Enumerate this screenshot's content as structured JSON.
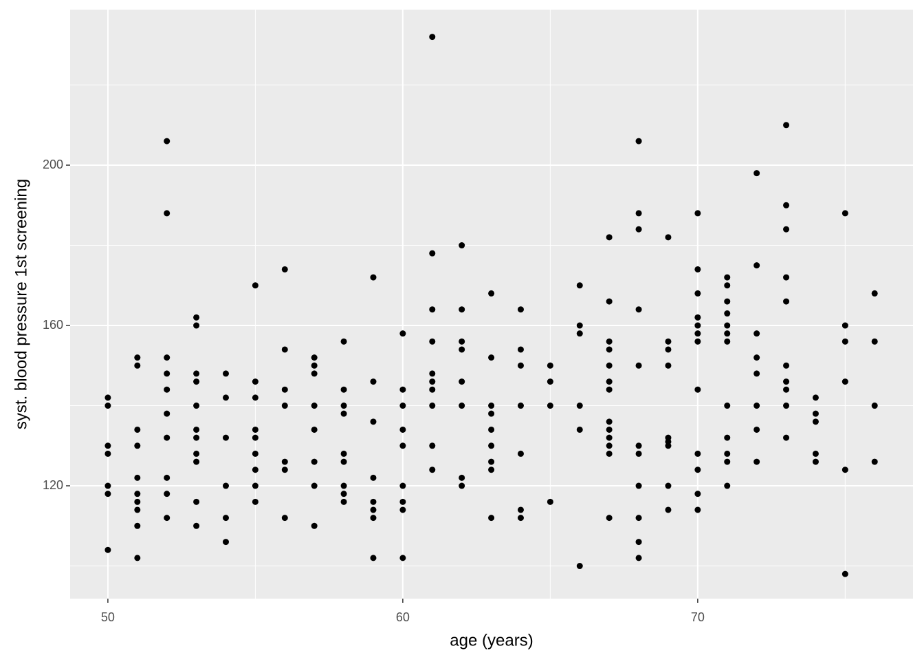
{
  "chart_data": {
    "type": "scatter",
    "x_label": "age (years)",
    "y_label": "syst. blood pressure 1st screening",
    "color": "#000000",
    "grid": true,
    "xlim": [
      48.72,
      77.3
    ],
    "ylim": [
      91.85,
      238.8
    ],
    "xticks": [
      50,
      60,
      70
    ],
    "yticks": [
      120,
      160,
      200
    ],
    "x": [
      50,
      50,
      50,
      50,
      50,
      50,
      50,
      51,
      51,
      51,
      51,
      51,
      51,
      51,
      51,
      51,
      51,
      52,
      52,
      52,
      52,
      52,
      52,
      52,
      52,
      52,
      52,
      53,
      53,
      53,
      53,
      53,
      53,
      53,
      53,
      53,
      53,
      53,
      54,
      54,
      54,
      54,
      54,
      54,
      55,
      55,
      55,
      55,
      55,
      55,
      55,
      55,
      55,
      56,
      56,
      56,
      56,
      56,
      56,
      56,
      57,
      57,
      57,
      57,
      57,
      57,
      57,
      57,
      58,
      58,
      58,
      58,
      58,
      58,
      58,
      58,
      58,
      59,
      59,
      59,
      59,
      59,
      59,
      59,
      59,
      60,
      60,
      60,
      60,
      60,
      60,
      60,
      60,
      60,
      61,
      61,
      61,
      61,
      61,
      61,
      61,
      61,
      61,
      61,
      62,
      62,
      62,
      62,
      62,
      62,
      62,
      62,
      63,
      63,
      63,
      63,
      63,
      63,
      63,
      63,
      63,
      64,
      64,
      64,
      64,
      64,
      64,
      64,
      65,
      65,
      65,
      65,
      66,
      66,
      66,
      66,
      66,
      66,
      67,
      67,
      67,
      67,
      67,
      67,
      67,
      67,
      67,
      67,
      67,
      67,
      67,
      68,
      68,
      68,
      68,
      68,
      68,
      68,
      68,
      68,
      68,
      68,
      69,
      69,
      69,
      69,
      69,
      69,
      69,
      69,
      69,
      70,
      70,
      70,
      70,
      70,
      70,
      70,
      70,
      70,
      70,
      70,
      70,
      71,
      71,
      71,
      71,
      71,
      71,
      71,
      71,
      71,
      71,
      71,
      71,
      72,
      72,
      72,
      72,
      72,
      72,
      72,
      72,
      73,
      73,
      73,
      73,
      73,
      73,
      73,
      73,
      73,
      73,
      74,
      74,
      74,
      74,
      74,
      75,
      75,
      75,
      75,
      75,
      75,
      76,
      76,
      76,
      76
    ],
    "y": [
      142,
      140,
      130,
      128,
      120,
      118,
      104,
      152,
      150,
      134,
      130,
      122,
      118,
      116,
      114,
      110,
      102,
      206,
      188,
      152,
      148,
      144,
      138,
      132,
      122,
      118,
      112,
      162,
      160,
      148,
      146,
      140,
      134,
      132,
      128,
      126,
      116,
      110,
      148,
      142,
      132,
      120,
      112,
      106,
      170,
      146,
      142,
      134,
      132,
      128,
      124,
      120,
      116,
      174,
      154,
      144,
      140,
      126,
      124,
      112,
      152,
      150,
      148,
      140,
      134,
      126,
      120,
      110,
      156,
      144,
      140,
      138,
      128,
      126,
      120,
      118,
      116,
      172,
      146,
      136,
      122,
      116,
      114,
      112,
      102,
      158,
      144,
      140,
      134,
      130,
      120,
      116,
      114,
      102,
      232,
      178,
      164,
      156,
      148,
      146,
      144,
      140,
      130,
      124,
      180,
      164,
      156,
      154,
      146,
      140,
      122,
      120,
      168,
      152,
      140,
      138,
      134,
      130,
      126,
      124,
      112,
      164,
      154,
      150,
      140,
      128,
      114,
      112,
      150,
      146,
      140,
      116,
      170,
      160,
      158,
      140,
      134,
      100,
      182,
      166,
      156,
      154,
      150,
      146,
      144,
      136,
      134,
      132,
      130,
      128,
      112,
      206,
      188,
      184,
      164,
      150,
      130,
      128,
      120,
      112,
      106,
      102,
      182,
      156,
      154,
      150,
      132,
      131,
      130,
      120,
      114,
      188,
      174,
      168,
      162,
      160,
      158,
      156,
      144,
      128,
      124,
      118,
      114,
      172,
      170,
      166,
      163,
      160,
      158,
      156,
      140,
      132,
      128,
      126,
      120,
      198,
      175,
      158,
      152,
      148,
      140,
      134,
      126,
      210,
      190,
      184,
      172,
      166,
      150,
      146,
      144,
      140,
      132,
      142,
      138,
      136,
      128,
      126,
      188,
      160,
      156,
      146,
      124,
      98,
      168,
      156,
      140,
      126
    ]
  }
}
